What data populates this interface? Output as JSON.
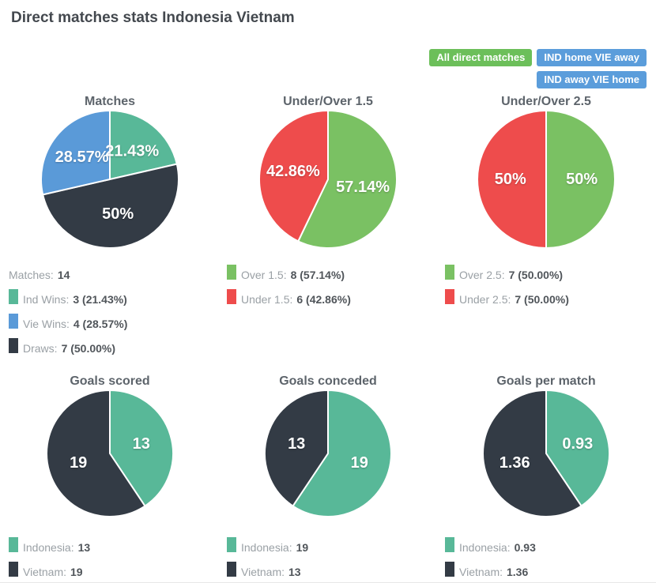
{
  "page_title": "Direct matches stats Indonesia Vietnam",
  "filter_buttons": [
    {
      "label": "All direct matches",
      "style": "green",
      "color": "#6cbf5a"
    },
    {
      "label": "IND home VIE away",
      "style": "blue",
      "color": "#5b9ddb"
    },
    {
      "label": "IND away VIE home",
      "style": "blue",
      "color": "#5b9ddb"
    }
  ],
  "colors": {
    "teal": "#58b898",
    "blue": "#5a9ad8",
    "dark": "#333b45",
    "green": "#7ac163",
    "red": "#ee4c4c",
    "button_green": "#6cbf5a",
    "button_blue": "#5b9ddb"
  },
  "chart_data": [
    {
      "type": "pie",
      "title": "Matches",
      "legend_header": {
        "label": "Matches:",
        "value": "14"
      },
      "slices": [
        {
          "name": "Ind Wins",
          "value": 3,
          "label": "21.43%",
          "color": "#58b898"
        },
        {
          "name": "Draws",
          "value": 7,
          "label": "50%",
          "color": "#333b45"
        },
        {
          "name": "Vie Wins",
          "value": 4,
          "label": "28.57%",
          "color": "#5a9ad8"
        }
      ],
      "legend": [
        {
          "label": "Ind Wins:",
          "value": "3 (21.43%)",
          "color": "#58b898"
        },
        {
          "label": "Vie Wins:",
          "value": "4 (28.57%)",
          "color": "#5a9ad8"
        },
        {
          "label": "Draws:",
          "value": "7 (50.00%)",
          "color": "#333b45"
        }
      ]
    },
    {
      "type": "pie",
      "title": "Under/Over 1.5",
      "slices": [
        {
          "name": "Over 1.5",
          "value": 8,
          "label": "57.14%",
          "color": "#7ac163"
        },
        {
          "name": "Under 1.5",
          "value": 6,
          "label": "42.86%",
          "color": "#ee4c4c"
        }
      ],
      "legend": [
        {
          "label": "Over 1.5:",
          "value": "8 (57.14%)",
          "color": "#7ac163"
        },
        {
          "label": "Under 1.5:",
          "value": "6 (42.86%)",
          "color": "#ee4c4c"
        }
      ]
    },
    {
      "type": "pie",
      "title": "Under/Over 2.5",
      "slices": [
        {
          "name": "Over 2.5",
          "value": 7,
          "label": "50%",
          "color": "#7ac163"
        },
        {
          "name": "Under 2.5",
          "value": 7,
          "label": "50%",
          "color": "#ee4c4c"
        }
      ],
      "legend": [
        {
          "label": "Over 2.5:",
          "value": "7 (50.00%)",
          "color": "#7ac163"
        },
        {
          "label": "Under 2.5:",
          "value": "7 (50.00%)",
          "color": "#ee4c4c"
        }
      ]
    },
    {
      "type": "pie",
      "title": "Goals scored",
      "slices": [
        {
          "name": "Indonesia",
          "value": 13,
          "label": "13",
          "color": "#58b898"
        },
        {
          "name": "Vietnam",
          "value": 19,
          "label": "19",
          "color": "#333b45"
        }
      ],
      "legend": [
        {
          "label": "Indonesia:",
          "value": "13",
          "color": "#58b898"
        },
        {
          "label": "Vietnam:",
          "value": "19",
          "color": "#333b45"
        }
      ]
    },
    {
      "type": "pie",
      "title": "Goals conceded",
      "slices": [
        {
          "name": "Indonesia",
          "value": 19,
          "label": "19",
          "color": "#58b898"
        },
        {
          "name": "Vietnam",
          "value": 13,
          "label": "13",
          "color": "#333b45"
        }
      ],
      "legend": [
        {
          "label": "Indonesia:",
          "value": "19",
          "color": "#58b898"
        },
        {
          "label": "Vietnam:",
          "value": "13",
          "color": "#333b45"
        }
      ]
    },
    {
      "type": "pie",
      "title": "Goals per match",
      "slices": [
        {
          "name": "Indonesia",
          "value": 0.93,
          "label": "0.93",
          "color": "#58b898"
        },
        {
          "name": "Vietnam",
          "value": 1.36,
          "label": "1.36",
          "color": "#333b45"
        }
      ],
      "legend": [
        {
          "label": "Indonesia:",
          "value": "0.93",
          "color": "#58b898"
        },
        {
          "label": "Vietnam:",
          "value": "1.36",
          "color": "#333b45"
        }
      ]
    }
  ]
}
